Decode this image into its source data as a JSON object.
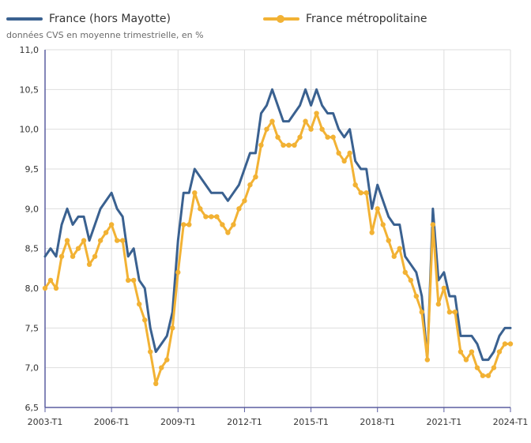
{
  "legend": {
    "series1_label": "France (hors Mayotte)",
    "series2_label": "France métropolitaine"
  },
  "subtitle": "données CVS en moyenne trimestrielle, en %",
  "colors": {
    "series1": "#3a6190",
    "series2": "#f2b234",
    "grid": "#dedede",
    "axis": "#5b5ea0",
    "text": "#333333"
  },
  "chart_data": {
    "type": "line",
    "ylim": [
      6.5,
      11.0
    ],
    "yticks": [
      "6,5",
      "7,0",
      "7,5",
      "8,0",
      "8,5",
      "9,0",
      "9,5",
      "10,0",
      "10,5",
      "11,0"
    ],
    "xticks": [
      "2003-T1",
      "2006-T1",
      "2009-T1",
      "2012-T1",
      "2015-T1",
      "2018-T1",
      "2021-T1",
      "2024-T1"
    ],
    "grid": true,
    "legend_position": "top",
    "series": [
      {
        "name": "France (hors Mayotte)",
        "values": [
          8.4,
          8.5,
          8.4,
          8.8,
          9.0,
          8.8,
          8.9,
          8.9,
          8.6,
          8.8,
          9.0,
          9.1,
          9.2,
          9.0,
          8.9,
          8.4,
          8.5,
          8.1,
          8.0,
          7.5,
          7.2,
          7.3,
          7.4,
          7.7,
          8.6,
          9.2,
          9.2,
          9.5,
          9.4,
          9.3,
          9.2,
          9.2,
          9.2,
          9.1,
          9.2,
          9.3,
          9.5,
          9.7,
          9.7,
          10.2,
          10.3,
          10.5,
          10.3,
          10.1,
          10.1,
          10.2,
          10.3,
          10.5,
          10.3,
          10.5,
          10.3,
          10.2,
          10.2,
          10.0,
          9.9,
          10.0,
          9.6,
          9.5,
          9.5,
          9.0,
          9.3,
          9.1,
          8.9,
          8.8,
          8.8,
          8.4,
          8.3,
          8.2,
          7.9,
          7.1,
          9.0,
          8.1,
          8.2,
          7.9,
          7.9,
          7.4,
          7.4,
          7.4,
          7.3,
          7.1,
          7.1,
          7.2,
          7.4,
          7.5,
          7.5
        ]
      },
      {
        "name": "France métropolitaine",
        "values": [
          8.0,
          8.1,
          8.0,
          8.4,
          8.6,
          8.4,
          8.5,
          8.6,
          8.3,
          8.4,
          8.6,
          8.7,
          8.8,
          8.6,
          8.6,
          8.1,
          8.1,
          7.8,
          7.6,
          7.2,
          6.8,
          7.0,
          7.1,
          7.5,
          8.2,
          8.8,
          8.8,
          9.2,
          9.0,
          8.9,
          8.9,
          8.9,
          8.8,
          8.7,
          8.8,
          9.0,
          9.1,
          9.3,
          9.4,
          9.8,
          10.0,
          10.1,
          9.9,
          9.8,
          9.8,
          9.8,
          9.9,
          10.1,
          10.0,
          10.2,
          10.0,
          9.9,
          9.9,
          9.7,
          9.6,
          9.7,
          9.3,
          9.2,
          9.2,
          8.7,
          9.0,
          8.8,
          8.6,
          8.4,
          8.5,
          8.2,
          8.1,
          7.9,
          7.7,
          7.1,
          8.8,
          7.8,
          8.0,
          7.7,
          7.7,
          7.2,
          7.1,
          7.2,
          7.0,
          6.9,
          6.9,
          7.0,
          7.2,
          7.3,
          7.3
        ]
      }
    ]
  }
}
